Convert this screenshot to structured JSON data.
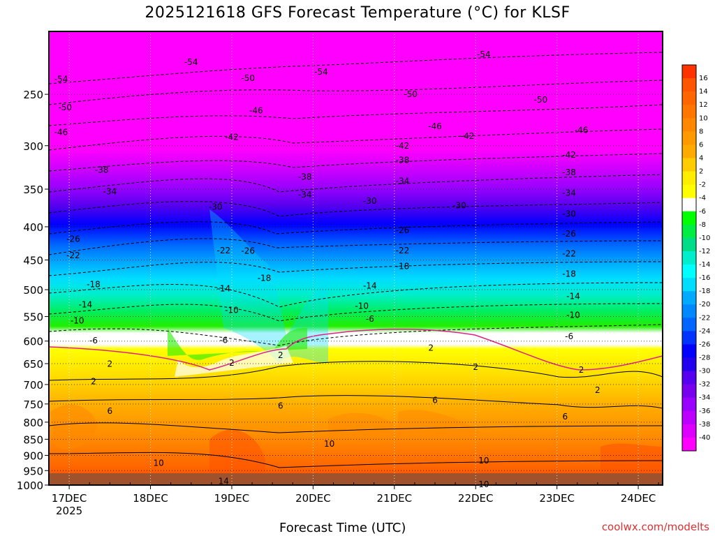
{
  "title": "2025121618 GFS Forecast Temperature (°C) for KLSF",
  "credit": "coolwx.com/modelts",
  "chart_data": {
    "type": "heatmap",
    "title": "2025121618 GFS Forecast Temperature (°C) for KLSF",
    "xlabel": "Forecast Time (UTC)",
    "ylabel": "",
    "x_ticks": [
      "17DEC",
      "18DEC",
      "19DEC",
      "20DEC",
      "21DEC",
      "22DEC",
      "23DEC",
      "24DEC"
    ],
    "x_year": "2025",
    "x_range_days": [
      -0.25,
      7.3
    ],
    "y_ticks": [
      250,
      300,
      350,
      400,
      450,
      500,
      550,
      600,
      650,
      700,
      750,
      800,
      850,
      900,
      950,
      1000
    ],
    "y_range_hpa": [
      200,
      1000
    ],
    "y_scale": "log",
    "colorbar_labels": [
      "16",
      "14",
      "12",
      "10",
      "8",
      "6",
      "4",
      "2",
      "-2",
      "-4",
      "-6",
      "-8",
      "-10",
      "-12",
      "-14",
      "-16",
      "-18",
      "-20",
      "-22",
      "-24",
      "-26",
      "-28",
      "-30",
      "-32",
      "-34",
      "-36",
      "-38",
      "-40"
    ],
    "colorbar_colors": [
      "#ff3300",
      "#ff5500",
      "#ff6600",
      "#ff7700",
      "#ff8800",
      "#ff9900",
      "#ffaa00",
      "#ffcc00",
      "#ffee00",
      "#ffff00",
      "#ffffff",
      "#00ff00",
      "#00ee44",
      "#00dd88",
      "#00eecc",
      "#00ffff",
      "#00ddff",
      "#00aaff",
      "#0088ff",
      "#0066ff",
      "#0033ff",
      "#0000ff",
      "#2200ee",
      "#5500ee",
      "#7700ee",
      "#9900ff",
      "#bb00ff",
      "#dd00ff",
      "#ff00ff"
    ],
    "contour_labels": [
      {
        "v": "-54",
        "t": -0.1,
        "p": 237
      },
      {
        "v": "-50",
        "t": -0.05,
        "p": 262
      },
      {
        "v": "-46",
        "t": -0.1,
        "p": 286
      },
      {
        "v": "-42",
        "t": 2.0,
        "p": 291
      },
      {
        "v": "-38",
        "t": 0.4,
        "p": 327
      },
      {
        "v": "-34",
        "t": 0.5,
        "p": 353
      },
      {
        "v": "-30",
        "t": 1.8,
        "p": 373
      },
      {
        "v": "-26",
        "t": 0.05,
        "p": 418
      },
      {
        "v": "-22",
        "t": 0.05,
        "p": 443
      },
      {
        "v": "-18",
        "t": 0.3,
        "p": 491
      },
      {
        "v": "-14",
        "t": 0.2,
        "p": 527
      },
      {
        "v": "-10",
        "t": 0.1,
        "p": 558
      },
      {
        "v": "-6",
        "t": 0.3,
        "p": 599
      },
      {
        "v": "-54",
        "t": 1.5,
        "p": 223
      },
      {
        "v": "-50",
        "t": 2.2,
        "p": 236
      },
      {
        "v": "-46",
        "t": 2.3,
        "p": 265
      },
      {
        "v": "-42",
        "t": 4.9,
        "p": 290
      },
      {
        "v": "-38",
        "t": 2.9,
        "p": 335
      },
      {
        "v": "-34",
        "t": 2.9,
        "p": 357
      },
      {
        "v": "-30",
        "t": 4.8,
        "p": 371
      },
      {
        "v": "-22",
        "t": 1.9,
        "p": 435
      },
      {
        "v": "-26",
        "t": 2.2,
        "p": 436
      },
      {
        "v": "-18",
        "t": 2.4,
        "p": 480
      },
      {
        "v": "-14",
        "t": 1.9,
        "p": 498
      },
      {
        "v": "-10",
        "t": 2.0,
        "p": 538
      },
      {
        "v": "-6",
        "t": 1.9,
        "p": 598
      },
      {
        "v": "2",
        "t": 0.5,
        "p": 651
      },
      {
        "v": "2",
        "t": 0.3,
        "p": 692
      },
      {
        "v": "6",
        "t": 0.5,
        "p": 769
      },
      {
        "v": "10",
        "t": 1.1,
        "p": 925
      },
      {
        "v": "14",
        "t": 1.9,
        "p": 986
      },
      {
        "v": "2",
        "t": 2.0,
        "p": 648
      },
      {
        "v": "2",
        "t": 2.6,
        "p": 631
      },
      {
        "v": "6",
        "t": 2.6,
        "p": 755
      },
      {
        "v": "10",
        "t": 3.2,
        "p": 864
      },
      {
        "v": "-54",
        "t": 3.1,
        "p": 231
      },
      {
        "v": "-50",
        "t": 4.2,
        "p": 250
      },
      {
        "v": "-46",
        "t": 4.5,
        "p": 280
      },
      {
        "v": "-42",
        "t": 4.1,
        "p": 300
      },
      {
        "v": "-38",
        "t": 4.1,
        "p": 316
      },
      {
        "v": "-34",
        "t": 4.1,
        "p": 340
      },
      {
        "v": "-30",
        "t": 3.7,
        "p": 365
      },
      {
        "v": "-26",
        "t": 4.1,
        "p": 405
      },
      {
        "v": "-22",
        "t": 4.1,
        "p": 435
      },
      {
        "v": "-18",
        "t": 4.1,
        "p": 460
      },
      {
        "v": "-14",
        "t": 3.7,
        "p": 493
      },
      {
        "v": "-10",
        "t": 3.6,
        "p": 530
      },
      {
        "v": "-6",
        "t": 3.7,
        "p": 555
      },
      {
        "v": "2",
        "t": 4.45,
        "p": 615
      },
      {
        "v": "6",
        "t": 4.5,
        "p": 740
      },
      {
        "v": "10",
        "t": 5.1,
        "p": 917
      },
      {
        "v": "2",
        "t": 5.0,
        "p": 658
      },
      {
        "v": "-54",
        "t": 5.1,
        "p": 217
      },
      {
        "v": "-50",
        "t": 5.8,
        "p": 255
      },
      {
        "v": "-46",
        "t": 6.3,
        "p": 284
      },
      {
        "v": "-42",
        "t": 6.15,
        "p": 310
      },
      {
        "v": "-38",
        "t": 6.15,
        "p": 330
      },
      {
        "v": "-34",
        "t": 6.15,
        "p": 355
      },
      {
        "v": "-30",
        "t": 6.15,
        "p": 382
      },
      {
        "v": "-26",
        "t": 6.15,
        "p": 410
      },
      {
        "v": "-22",
        "t": 6.15,
        "p": 440
      },
      {
        "v": "-18",
        "t": 6.15,
        "p": 473
      },
      {
        "v": "-14",
        "t": 6.2,
        "p": 512
      },
      {
        "v": "-10",
        "t": 6.2,
        "p": 547
      },
      {
        "v": "-6",
        "t": 6.15,
        "p": 590
      },
      {
        "v": "2",
        "t": 6.3,
        "p": 665
      },
      {
        "v": "2",
        "t": 6.5,
        "p": 714
      },
      {
        "v": "6",
        "t": 6.1,
        "p": 785
      },
      {
        "v": "10",
        "t": 5.1,
        "p": 997
      }
    ]
  }
}
